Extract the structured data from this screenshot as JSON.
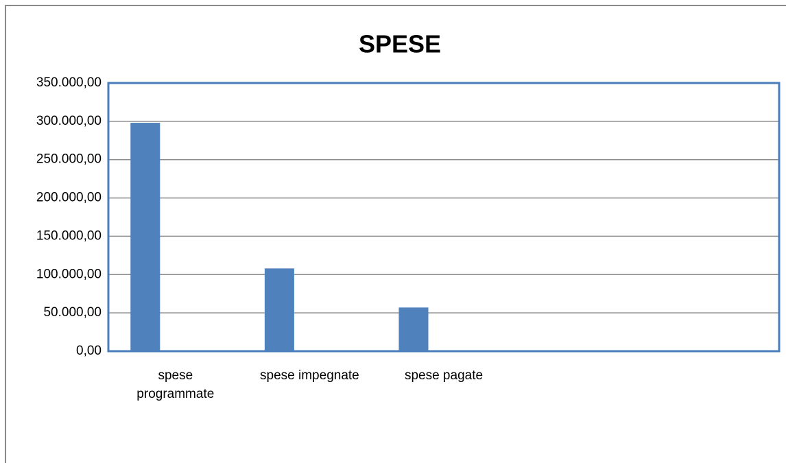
{
  "chart_data": {
    "type": "bar",
    "title": "SPESE",
    "categories": [
      "spese programmate",
      "spese impegnate",
      "spese pagate",
      null,
      null
    ],
    "values": [
      298000,
      108000,
      57000,
      null,
      null
    ],
    "color": "#4f81bd",
    "ylim": [
      0,
      350000
    ],
    "yticks": [
      {
        "value": 0,
        "label": "0,00"
      },
      {
        "value": 50000,
        "label": "50.000,00"
      },
      {
        "value": 100000,
        "label": "100.000,00"
      },
      {
        "value": 150000,
        "label": "150.000,00"
      },
      {
        "value": 200000,
        "label": "200.000,00"
      },
      {
        "value": 250000,
        "label": "250.000,00"
      },
      {
        "value": 300000,
        "label": "300.000,00"
      },
      {
        "value": 350000,
        "label": "350.000,00"
      }
    ],
    "grid": true
  }
}
